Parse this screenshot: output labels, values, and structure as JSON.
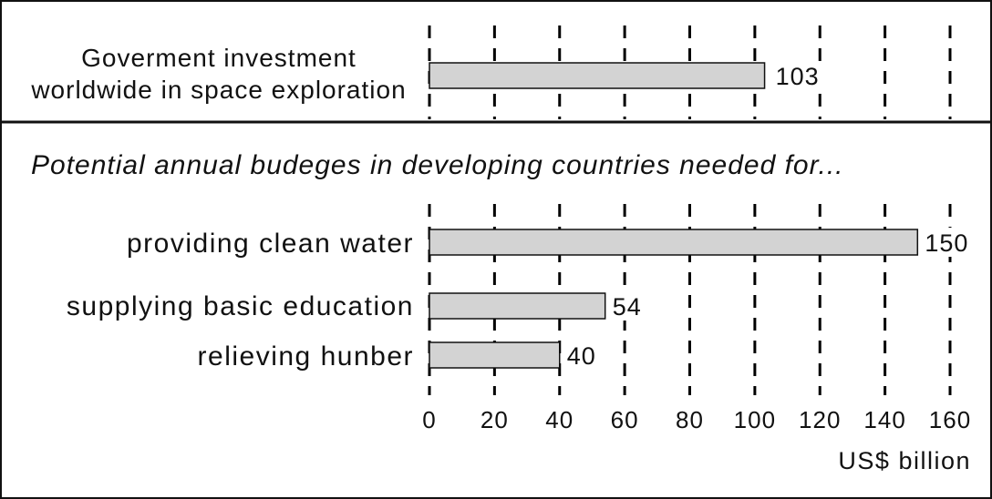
{
  "chart_data": {
    "type": "bar",
    "orientation": "horizontal",
    "top_panel": {
      "categories": [
        "Goverment investment\nworldwide in space exploration"
      ],
      "values": [
        103
      ]
    },
    "bottom_panel": {
      "subtitle": "Potential annual budeges in developing countries needed for...",
      "categories": [
        "providing clean water",
        "supplying basic education",
        "relieving hunber"
      ],
      "values": [
        150,
        54,
        40
      ]
    },
    "xlim": [
      0,
      160
    ],
    "x_ticks": [
      0,
      20,
      40,
      60,
      80,
      100,
      120,
      140,
      160
    ],
    "xlabel": "US$ billion",
    "grid": true,
    "bar_color": "#d3d3d3"
  }
}
